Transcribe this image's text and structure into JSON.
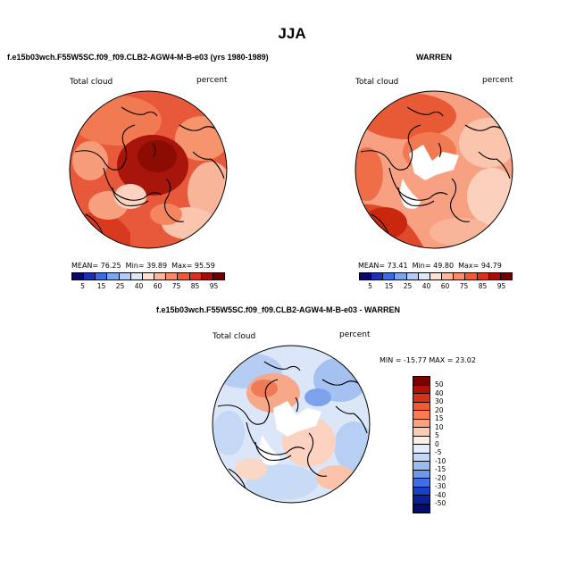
{
  "title": "JJA",
  "panels": {
    "left": {
      "subtitle": "f.e15b03wch.F55W5SC.f09_f09.CLB2-AGW4-M-B-e03 (yrs 1980-1989)",
      "variable": "Total cloud",
      "units": "percent",
      "stats": {
        "mean_label": "MEAN=",
        "mean": "76.25",
        "min_label": "Min=",
        "min": "39.89",
        "max_label": "Max=",
        "max": "95.59"
      }
    },
    "right": {
      "subtitle": "WARREN",
      "variable": "Total cloud",
      "units": "percent",
      "stats": {
        "mean_label": "MEAN=",
        "mean": "73.41",
        "min_label": "Min=",
        "min": "49.80",
        "max_label": "Max=",
        "max": "94.79"
      }
    },
    "diff": {
      "subtitle": "f.e15b03wch.F55W5SC.f09_f09.CLB2-AGW4-M-B-e03 - WARREN",
      "variable": "Total cloud",
      "units": "percent",
      "minmax_text": "MIN = -15.77 MAX =  23.02"
    }
  },
  "colorbar_main": {
    "tick_labels": [
      "5",
      "15",
      "25",
      "40",
      "60",
      "75",
      "85",
      "95"
    ],
    "colors": [
      "#08086b",
      "#1a2fb5",
      "#3a6de0",
      "#7aa6ee",
      "#b3cdf5",
      "#dfe8f7",
      "#fde3d3",
      "#fbb99c",
      "#f98b66",
      "#ef5a34",
      "#d9301a",
      "#a80c08",
      "#6b0000"
    ]
  },
  "colorbar_diff": {
    "tick_labels": [
      "50",
      "40",
      "30",
      "20",
      "15",
      "10",
      "5",
      "0",
      "-5",
      "-10",
      "-15",
      "-20",
      "-30",
      "-40",
      "-50"
    ],
    "colors": [
      "#7a0000",
      "#b01008",
      "#d8301a",
      "#ef5a34",
      "#f97c52",
      "#fba27e",
      "#fdcbb0",
      "#fdeee4",
      "#e4eefb",
      "#c3d7f7",
      "#9bbcf1",
      "#6e98e8",
      "#3f6fe0",
      "#1a40c8",
      "#0820a0",
      "#050a6e"
    ]
  },
  "map_fill_colors": {
    "left": [
      "#e24a2a",
      "#f06a40",
      "#a81408",
      "#f8b39a"
    ],
    "right": [
      "#f48e6a",
      "#e54a2a",
      "#fbc8b0",
      "#ffffff"
    ],
    "diff": [
      "#cfe0f7",
      "#fbd3c0",
      "#a9c4f2",
      "#ffffff"
    ]
  }
}
